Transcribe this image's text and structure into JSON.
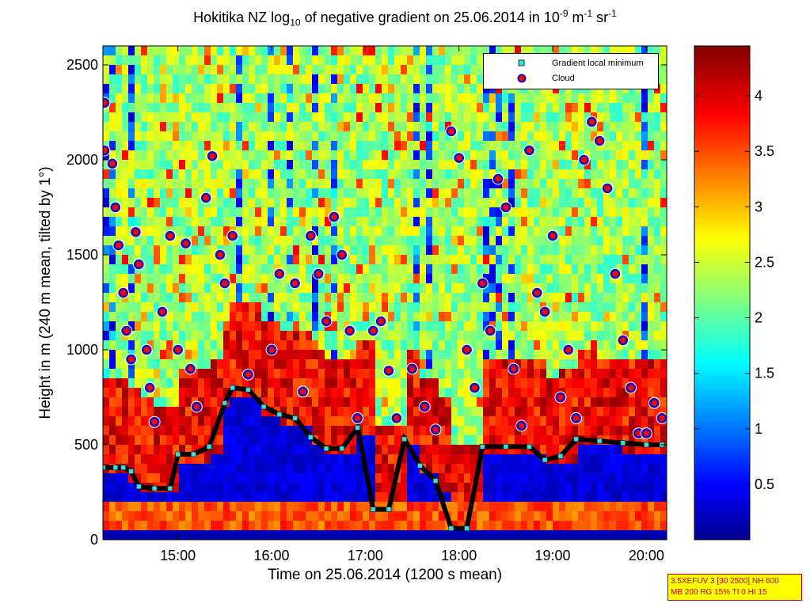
{
  "header": {
    "title_main": "Hokitika NZ log",
    "title_sub": "10",
    "title_mid": " of negative gradient on 25.06.2014 in 10",
    "title_exp1": "-9",
    "title_unit1": " m",
    "title_exp2": "-1",
    "title_unit2": " sr",
    "title_exp3": "-1"
  },
  "chart_data": {
    "type": "heatmap",
    "xlabel": "Time on 25.06.2014 (1200 s mean)",
    "ylabel": "Height in m (240 m mean, tilted by 1°)",
    "xlim": [
      "14:12",
      "20:13"
    ],
    "ylim": [
      0,
      2600
    ],
    "x_ticks": [
      "15:00",
      "16:00",
      "17:00",
      "18:00",
      "19:00",
      "20:00"
    ],
    "y_ticks": [
      "0",
      "500",
      "1000",
      "1500",
      "2000",
      "2500"
    ],
    "colorbar": {
      "range": [
        0,
        4.45
      ],
      "ticks": [
        "0.5",
        "1",
        "1.5",
        "2",
        "2.5",
        "3",
        "3.5",
        "4"
      ],
      "colormap": "jet"
    },
    "legend": {
      "placement": "top-right",
      "entries": [
        {
          "label": "Gradient local minimum",
          "color": "#40e0d0",
          "marker": "square"
        },
        {
          "label": "Cloud",
          "color": "#ff0000",
          "marker": "circle"
        }
      ]
    },
    "series": [
      {
        "name": "Gradient local minimum",
        "points": [
          [
            "14:12",
            380
          ],
          [
            "14:20",
            380
          ],
          [
            "14:25",
            380
          ],
          [
            "14:30",
            360
          ],
          [
            "14:35",
            280
          ],
          [
            "14:45",
            270
          ],
          [
            "14:55",
            270
          ],
          [
            "15:00",
            450
          ],
          [
            "15:10",
            450
          ],
          [
            "15:20",
            490
          ],
          [
            "15:30",
            720
          ],
          [
            "15:35",
            800
          ],
          [
            "15:45",
            790
          ],
          [
            "15:55",
            700
          ],
          [
            "16:05",
            660
          ],
          [
            "16:15",
            640
          ],
          [
            "16:25",
            540
          ],
          [
            "16:35",
            480
          ],
          [
            "16:45",
            480
          ],
          [
            "16:55",
            590
          ],
          [
            "17:05",
            160
          ],
          [
            "17:15",
            160
          ],
          [
            "17:25",
            530
          ],
          [
            "17:35",
            390
          ],
          [
            "17:45",
            310
          ],
          [
            "17:55",
            60
          ],
          [
            "18:05",
            60
          ],
          [
            "18:15",
            490
          ],
          [
            "18:30",
            490
          ],
          [
            "18:45",
            490
          ],
          [
            "18:55",
            420
          ],
          [
            "19:05",
            440
          ],
          [
            "19:15",
            530
          ],
          [
            "19:30",
            520
          ],
          [
            "19:45",
            510
          ],
          [
            "20:00",
            500
          ],
          [
            "20:10",
            500
          ]
        ]
      },
      {
        "name": "Cloud",
        "points": [
          [
            "14:13",
            2300
          ],
          [
            "14:13",
            2050
          ],
          [
            "14:18",
            1980
          ],
          [
            "14:20",
            1750
          ],
          [
            "14:22",
            1550
          ],
          [
            "14:25",
            1300
          ],
          [
            "14:27",
            1100
          ],
          [
            "14:30",
            950
          ],
          [
            "14:33",
            1620
          ],
          [
            "14:35",
            1450
          ],
          [
            "14:40",
            1000
          ],
          [
            "14:42",
            800
          ],
          [
            "14:45",
            620
          ],
          [
            "14:50",
            1200
          ],
          [
            "14:55",
            1600
          ],
          [
            "15:00",
            1000
          ],
          [
            "15:05",
            1560
          ],
          [
            "15:08",
            900
          ],
          [
            "15:12",
            700
          ],
          [
            "15:18",
            1800
          ],
          [
            "15:22",
            2020
          ],
          [
            "15:27",
            1500
          ],
          [
            "15:30",
            1350
          ],
          [
            "15:35",
            1600
          ],
          [
            "15:45",
            870
          ],
          [
            "16:00",
            1000
          ],
          [
            "16:05",
            1400
          ],
          [
            "16:15",
            1350
          ],
          [
            "16:20",
            780
          ],
          [
            "16:25",
            1600
          ],
          [
            "16:30",
            1400
          ],
          [
            "16:35",
            1150
          ],
          [
            "16:40",
            1700
          ],
          [
            "16:45",
            1500
          ],
          [
            "16:50",
            1100
          ],
          [
            "16:55",
            640
          ],
          [
            "17:05",
            1100
          ],
          [
            "17:10",
            1150
          ],
          [
            "17:15",
            890
          ],
          [
            "17:20",
            640
          ],
          [
            "17:30",
            900
          ],
          [
            "17:38",
            700
          ],
          [
            "17:45",
            580
          ],
          [
            "17:55",
            2150
          ],
          [
            "18:00",
            2010
          ],
          [
            "18:05",
            1000
          ],
          [
            "18:10",
            800
          ],
          [
            "18:15",
            1350
          ],
          [
            "18:20",
            1100
          ],
          [
            "18:25",
            1900
          ],
          [
            "18:30",
            1750
          ],
          [
            "18:35",
            900
          ],
          [
            "18:40",
            600
          ],
          [
            "18:45",
            2050
          ],
          [
            "18:50",
            1300
          ],
          [
            "18:55",
            1200
          ],
          [
            "19:00",
            1600
          ],
          [
            "19:05",
            750
          ],
          [
            "19:10",
            1000
          ],
          [
            "19:15",
            640
          ],
          [
            "19:20",
            2000
          ],
          [
            "19:25",
            2200
          ],
          [
            "19:30",
            2100
          ],
          [
            "19:35",
            1850
          ],
          [
            "19:40",
            1400
          ],
          [
            "19:45",
            1050
          ],
          [
            "19:50",
            800
          ],
          [
            "19:55",
            560
          ],
          [
            "20:00",
            560
          ],
          [
            "20:05",
            720
          ],
          [
            "20:10",
            640
          ]
        ]
      }
    ]
  },
  "info": {
    "line1": "3.5XEFUV 3 [30 2500] NH 600",
    "line2": "MB 200 RG 15% TI 0 HI 15"
  }
}
